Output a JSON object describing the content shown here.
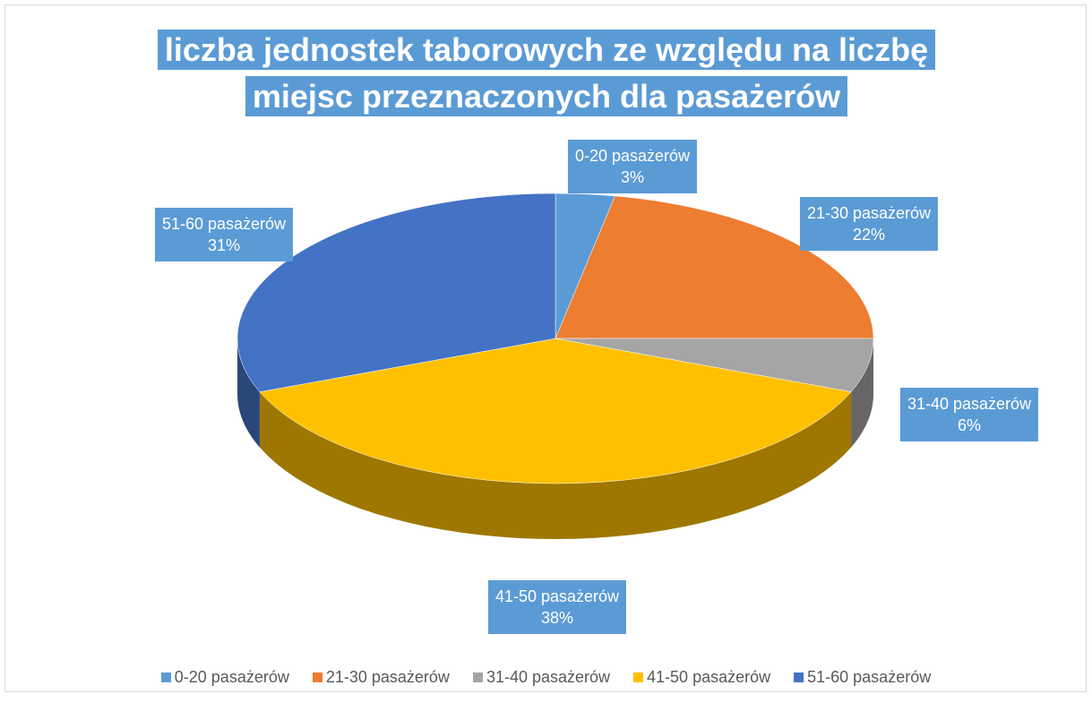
{
  "chart_data": {
    "type": "pie",
    "title": "liczba jednostek taborowych ze względu na liczbę miejsc przeznaczonych dla pasażerów",
    "categories": [
      "0-20 pasażerów",
      "21-30 pasażerów",
      "31-40 pasażerów",
      "41-50 pasażerów",
      "51-60 pasażerów"
    ],
    "values": [
      3,
      22,
      6,
      38,
      31
    ],
    "value_labels": [
      "3%",
      "22%",
      "6%",
      "38%",
      "31%"
    ],
    "colors": [
      "#5b9bd5",
      "#ed7d31",
      "#a5a5a5",
      "#ffc000",
      "#4472c4"
    ],
    "legend": "bottom"
  }
}
